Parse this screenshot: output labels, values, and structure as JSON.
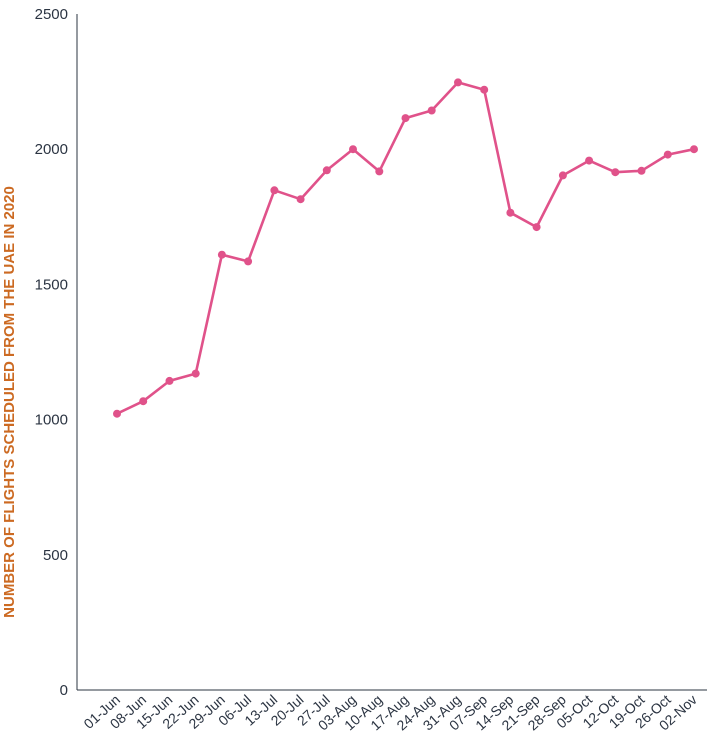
{
  "chart_data": {
    "type": "line",
    "title": "",
    "xlabel": "",
    "ylabel": "NUMBER OF FLIGHTS SCHEDULED FROM THE UAE IN 2020",
    "ylim": [
      0,
      2500
    ],
    "yticks": [
      "0",
      "500",
      "1000",
      "1500",
      "2000",
      "2500"
    ],
    "grid": false,
    "categories": [
      "01-Jun",
      "08-Jun",
      "15-Jun",
      "22-Jun",
      "29-Jun",
      "06-Jul",
      "13-Jul",
      "20-Jul",
      "27-Jul",
      "03-Aug",
      "10-Aug",
      "17-Aug",
      "24-Aug",
      "31-Aug",
      "07-Sep",
      "14-Sep",
      "21-Sep",
      "28-Sep",
      "05-Oct",
      "12-Oct",
      "19-Oct",
      "26-Oct",
      "02-Nov"
    ],
    "series": [
      {
        "values": [
          1022,
          1068,
          1143,
          1170,
          1610,
          1585,
          1848,
          1815,
          1922,
          2000,
          1918,
          2115,
          2143,
          2247,
          2220,
          1765,
          1712,
          1903,
          1958,
          1915,
          1920,
          1980,
          2000
        ],
        "color": "#e0528a"
      }
    ],
    "axis_color": "#2b3442",
    "ylabel_color": "#cc6a22"
  }
}
